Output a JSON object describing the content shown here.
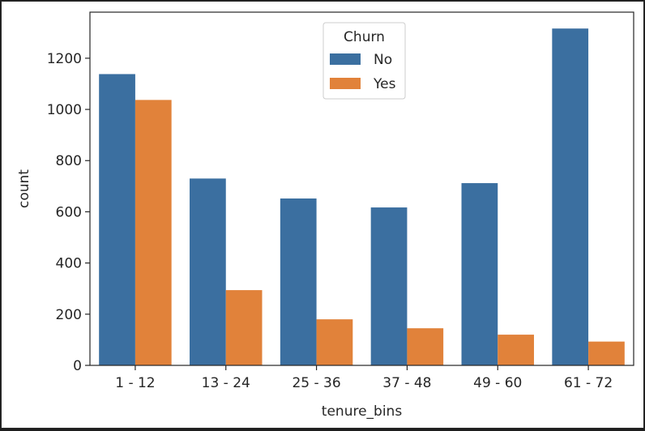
{
  "chart_data": {
    "type": "bar",
    "xlabel": "tenure_bins",
    "ylabel": "count",
    "categories": [
      "1 - 12",
      "13 - 24",
      "25 - 36",
      "37 - 48",
      "49 - 60",
      "61 - 72"
    ],
    "series": [
      {
        "name": "No",
        "color": "#3b6fa0",
        "values": [
          1138,
          730,
          652,
          617,
          712,
          1316
        ]
      },
      {
        "name": "Yes",
        "color": "#e1823a",
        "values": [
          1037,
          294,
          180,
          145,
          120,
          93
        ]
      }
    ],
    "ylim": [
      0,
      1380
    ],
    "yticks": [
      0,
      200,
      400,
      600,
      800,
      1000,
      1200
    ],
    "legend": {
      "title": "Churn",
      "placement": "top-center"
    },
    "grid": false
  }
}
